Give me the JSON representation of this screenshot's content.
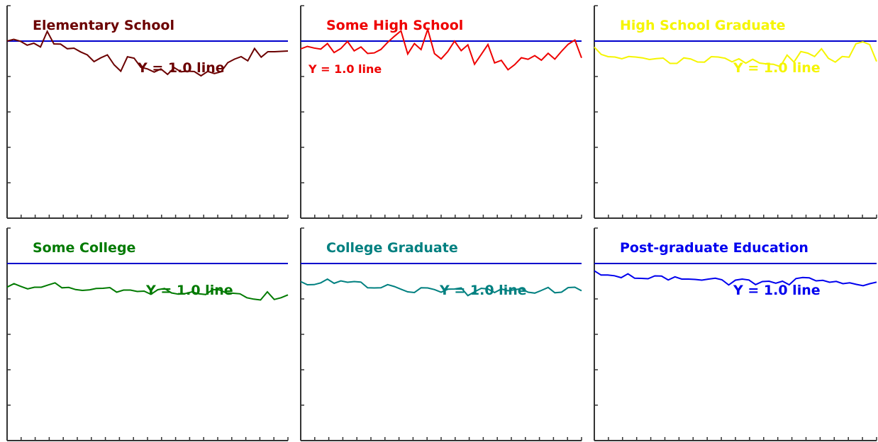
{
  "chart_data": [
    {
      "type": "line",
      "title": "Elementary School",
      "color": "#6b0000",
      "reference": {
        "y": 1.0,
        "label": "Y = 1.0 line",
        "color": "#0000cc"
      },
      "ylim": [
        0,
        1.2
      ],
      "xlim": [
        0,
        40
      ],
      "series": [
        {
          "values": [
            1.0,
            1.01,
            0.999,
            0.977,
            0.988,
            0.967,
            1.055,
            0.984,
            0.983,
            0.957,
            0.96,
            0.939,
            0.922,
            0.884,
            0.905,
            0.922,
            0.866,
            0.83,
            0.911,
            0.903,
            0.852,
            0.843,
            0.825,
            0.843,
            0.812,
            0.85,
            0.827,
            0.83,
            0.828,
            0.804,
            0.829,
            0.817,
            0.827,
            0.878,
            0.898,
            0.912,
            0.889,
            0.958,
            0.909,
            0.94,
            0.94,
            0.942,
            0.944
          ]
        }
      ]
    },
    {
      "type": "line",
      "title": "Some High School",
      "color": "#ee0000",
      "reference": {
        "y": 1.0,
        "label": "Y = 1.0 line",
        "color": "#0000cc"
      },
      "ylim": [
        0,
        1.2
      ],
      "xlim": [
        0,
        40
      ],
      "series": [
        {
          "values": [
            0.956,
            0.97,
            0.961,
            0.955,
            0.986,
            0.935,
            0.958,
            0.998,
            0.945,
            0.967,
            0.93,
            0.933,
            0.953,
            0.993,
            1.027,
            1.058,
            0.927,
            0.986,
            0.952,
            1.067,
            0.929,
            0.899,
            0.941,
            1.0,
            0.946,
            0.979,
            0.869,
            0.925,
            0.981,
            0.877,
            0.891,
            0.838,
            0.867,
            0.906,
            0.897,
            0.918,
            0.892,
            0.931,
            0.898,
            0.942,
            0.982,
            1.006,
            0.905
          ]
        }
      ]
    },
    {
      "type": "line",
      "title": "High School Graduate",
      "color": "#f5f500",
      "reference": {
        "y": 1.0,
        "label": "Y = 1.0 line",
        "color": "#0000cc"
      },
      "ylim": [
        0,
        1.2
      ],
      "xlim": [
        0,
        40
      ],
      "series": [
        {
          "values": [
            0.966,
            0.925,
            0.912,
            0.91,
            0.9,
            0.913,
            0.91,
            0.905,
            0.896,
            0.901,
            0.904,
            0.874,
            0.874,
            0.905,
            0.899,
            0.882,
            0.881,
            0.912,
            0.91,
            0.903,
            0.883,
            0.9,
            0.875,
            0.897,
            0.876,
            0.871,
            0.869,
            0.856,
            0.921,
            0.881,
            0.941,
            0.932,
            0.913,
            0.957,
            0.903,
            0.881,
            0.913,
            0.909,
            0.985,
            0.996,
            0.98,
            0.885
          ]
        }
      ]
    },
    {
      "type": "line",
      "title": "Some College",
      "color": "#007a00",
      "reference": {
        "y": 1.0,
        "label": "Y = 1.0 line",
        "color": "#0000cc"
      },
      "ylim": [
        0,
        1.2
      ],
      "xlim": [
        0,
        40
      ],
      "series": [
        {
          "values": [
            0.867,
            0.886,
            0.871,
            0.857,
            0.866,
            0.866,
            0.879,
            0.891,
            0.863,
            0.865,
            0.853,
            0.848,
            0.851,
            0.859,
            0.86,
            0.864,
            0.838,
            0.85,
            0.85,
            0.842,
            0.844,
            0.826,
            0.852,
            0.859,
            0.834,
            0.827,
            0.83,
            0.84,
            0.829,
            0.825,
            0.853,
            0.851,
            0.834,
            0.832,
            0.829,
            0.807,
            0.799,
            0.794,
            0.84,
            0.797,
            0.807,
            0.823
          ]
        }
      ]
    },
    {
      "type": "line",
      "title": "College Graduate",
      "color": "#008080",
      "reference": {
        "y": 1.0,
        "label": "Y = 1.0 line",
        "color": "#0000cc"
      },
      "ylim": [
        0,
        1.2
      ],
      "xlim": [
        0,
        40
      ],
      "series": [
        {
          "values": [
            0.898,
            0.88,
            0.881,
            0.891,
            0.912,
            0.888,
            0.902,
            0.894,
            0.898,
            0.895,
            0.863,
            0.862,
            0.863,
            0.881,
            0.87,
            0.855,
            0.84,
            0.836,
            0.863,
            0.862,
            0.853,
            0.838,
            0.855,
            0.856,
            0.862,
            0.819,
            0.84,
            0.86,
            0.856,
            0.836,
            0.856,
            0.846,
            0.852,
            0.858,
            0.838,
            0.833,
            0.848,
            0.865,
            0.835,
            0.838,
            0.864,
            0.866,
            0.846
          ]
        }
      ]
    },
    {
      "type": "line",
      "title": "Post-graduate Education",
      "color": "#0000ee",
      "reference": {
        "y": 1.0,
        "label": "Y = 1.0 line",
        "color": "#0000cc"
      },
      "ylim": [
        0,
        1.2
      ],
      "xlim": [
        0,
        40
      ],
      "series": [
        {
          "values": [
            0.959,
            0.935,
            0.935,
            0.931,
            0.92,
            0.942,
            0.917,
            0.916,
            0.914,
            0.93,
            0.929,
            0.907,
            0.925,
            0.912,
            0.912,
            0.91,
            0.906,
            0.912,
            0.917,
            0.908,
            0.879,
            0.906,
            0.912,
            0.907,
            0.881,
            0.898,
            0.9,
            0.889,
            0.9,
            0.88,
            0.915,
            0.921,
            0.919,
            0.902,
            0.905,
            0.894,
            0.899,
            0.886,
            0.891,
            0.882,
            0.875,
            0.886,
            0.895
          ]
        }
      ]
    }
  ]
}
